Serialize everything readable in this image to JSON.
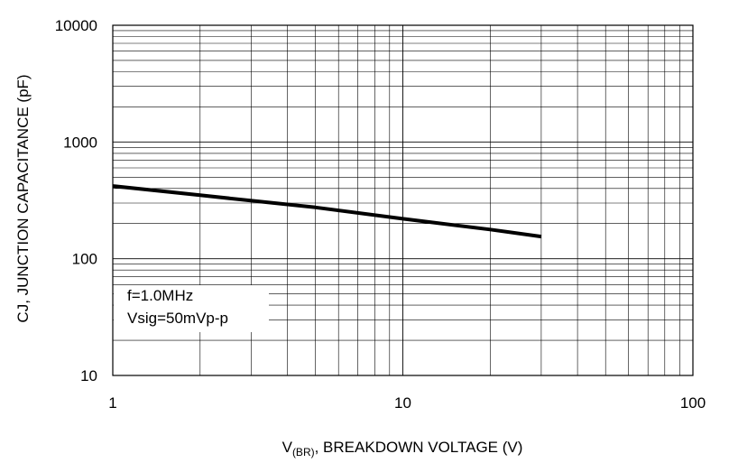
{
  "chart_data": {
    "type": "line",
    "title": "",
    "xlabel": {
      "prefix": "V",
      "subscript": "(BR)",
      "suffix": ", BREAKDOWN VOLTAGE (V)"
    },
    "ylabel": "CJ, JUNCTION CAPACITANCE (pF)",
    "xscale": "log",
    "yscale": "log",
    "xlim": [
      1,
      100
    ],
    "ylim": [
      10,
      10000
    ],
    "x_ticks": [
      "1",
      "10",
      "100"
    ],
    "y_ticks": [
      "10",
      "100",
      "1000",
      "10000"
    ],
    "grid": true,
    "annotation": [
      "f=1.0MHz",
      "Vsig=50mVp-p"
    ],
    "series": [
      {
        "x": [
          1,
          2,
          5,
          10,
          20,
          30
        ],
        "y": [
          420,
          350,
          275,
          220,
          178,
          155
        ]
      }
    ],
    "line_color": "#000000"
  }
}
